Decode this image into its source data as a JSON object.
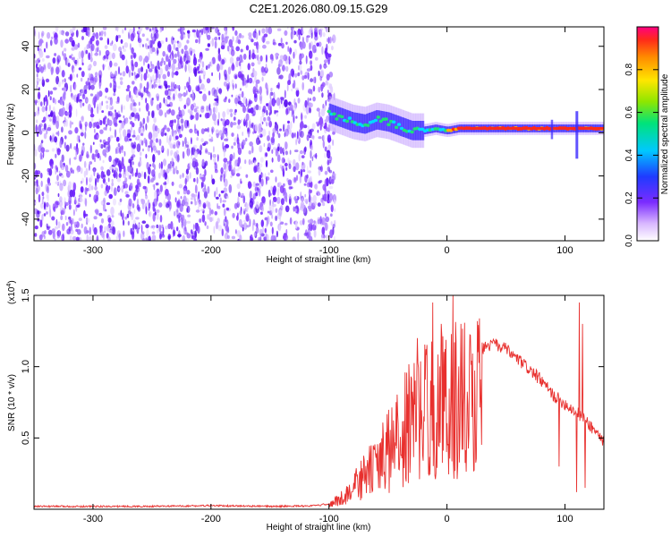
{
  "chart_data": [
    {
      "type": "heatmap",
      "title": "C2E1.2026.080.09.15.G29",
      "xlabel": "Height of straight line (km)",
      "ylabel": "Frequency (Hz)",
      "xlim": [
        -350,
        133
      ],
      "ylim": [
        -50,
        49
      ],
      "xticks": [
        -300,
        -200,
        -100,
        0,
        100
      ],
      "xtick_labels": [
        "-300",
        "-200",
        "-100",
        "0",
        "100"
      ],
      "yticks": [
        -40,
        -20,
        0,
        20,
        40
      ],
      "ytick_labels": [
        "-40",
        "-20",
        "0",
        "20",
        "40"
      ],
      "noise_region_xmax": -95,
      "signal_trace": [
        {
          "x": -100,
          "y": 9
        },
        {
          "x": -90,
          "y": 7
        },
        {
          "x": -80,
          "y": 5
        },
        {
          "x": -70,
          "y": 4
        },
        {
          "x": -60,
          "y": 6
        },
        {
          "x": -50,
          "y": 5
        },
        {
          "x": -40,
          "y": 3
        },
        {
          "x": -30,
          "y": 1
        },
        {
          "x": -20,
          "y": 1
        },
        {
          "x": -10,
          "y": 2
        },
        {
          "x": 0,
          "y": 1
        },
        {
          "x": 10,
          "y": 2
        },
        {
          "x": 20,
          "y": 2
        },
        {
          "x": 40,
          "y": 2
        },
        {
          "x": 60,
          "y": 2
        },
        {
          "x": 80,
          "y": 2
        },
        {
          "x": 100,
          "y": 2
        },
        {
          "x": 133,
          "y": 2
        }
      ],
      "colorbar": {
        "label": "Normalized spectral amplitude",
        "range": [
          0,
          1
        ],
        "ticks": [
          0.0,
          0.2,
          0.4,
          0.6,
          0.8
        ],
        "tick_labels": [
          "0.0",
          "0.2",
          "0.4",
          "0.6",
          "0.8"
        ]
      }
    },
    {
      "type": "line",
      "xlabel": "Height of straight line (km)",
      "ylabel": "SNR (10 * v/v)",
      "scale_label": "(x10",
      "scale_exp": "4",
      "scale_close": ")",
      "xlim": [
        -350,
        133
      ],
      "ylim": [
        0,
        1.5
      ],
      "xticks": [
        -300,
        -200,
        -100,
        0,
        100
      ],
      "xtick_labels": [
        "-300",
        "-200",
        "-100",
        "0",
        "100"
      ],
      "yticks": [
        0.5,
        1.0,
        1.5
      ],
      "ytick_labels": [
        "0.5",
        "1.0",
        "1.5"
      ],
      "color": "#e8302e",
      "envelope": [
        {
          "x": -350,
          "y": 0.02
        },
        {
          "x": -300,
          "y": 0.02
        },
        {
          "x": -250,
          "y": 0.02
        },
        {
          "x": -200,
          "y": 0.025
        },
        {
          "x": -150,
          "y": 0.02
        },
        {
          "x": -110,
          "y": 0.025
        },
        {
          "x": -100,
          "y": 0.04
        },
        {
          "x": -90,
          "y": 0.1
        },
        {
          "x": -80,
          "y": 0.2
        },
        {
          "x": -70,
          "y": 0.32
        },
        {
          "x": -60,
          "y": 0.42
        },
        {
          "x": -50,
          "y": 0.55
        },
        {
          "x": -40,
          "y": 0.7
        },
        {
          "x": -30,
          "y": 0.85
        },
        {
          "x": -20,
          "y": 0.95
        },
        {
          "x": -10,
          "y": 0.98
        },
        {
          "x": 0,
          "y": 1.03
        },
        {
          "x": 10,
          "y": 1.06
        },
        {
          "x": 20,
          "y": 1.1
        },
        {
          "x": 30,
          "y": 1.13
        },
        {
          "x": 40,
          "y": 1.16
        },
        {
          "x": 50,
          "y": 1.12
        },
        {
          "x": 60,
          "y": 1.05
        },
        {
          "x": 70,
          "y": 0.98
        },
        {
          "x": 80,
          "y": 0.9
        },
        {
          "x": 90,
          "y": 0.8
        },
        {
          "x": 100,
          "y": 0.74
        },
        {
          "x": 110,
          "y": 0.68
        },
        {
          "x": 120,
          "y": 0.6
        },
        {
          "x": 133,
          "y": 0.48
        }
      ],
      "spikes": [
        {
          "x": -25,
          "y": 1.2
        },
        {
          "x": -12,
          "y": 1.45
        },
        {
          "x": -5,
          "y": 1.3
        },
        {
          "x": 5,
          "y": 1.5
        },
        {
          "x": 12,
          "y": 1.3
        },
        {
          "x": 20,
          "y": 1.22
        },
        {
          "x": 95,
          "y": 0.3
        },
        {
          "x": 110,
          "y": 0.12
        },
        {
          "x": 112,
          "y": 1.45
        },
        {
          "x": 115,
          "y": 1.3
        },
        {
          "x": 117,
          "y": 0.15
        }
      ]
    }
  ]
}
